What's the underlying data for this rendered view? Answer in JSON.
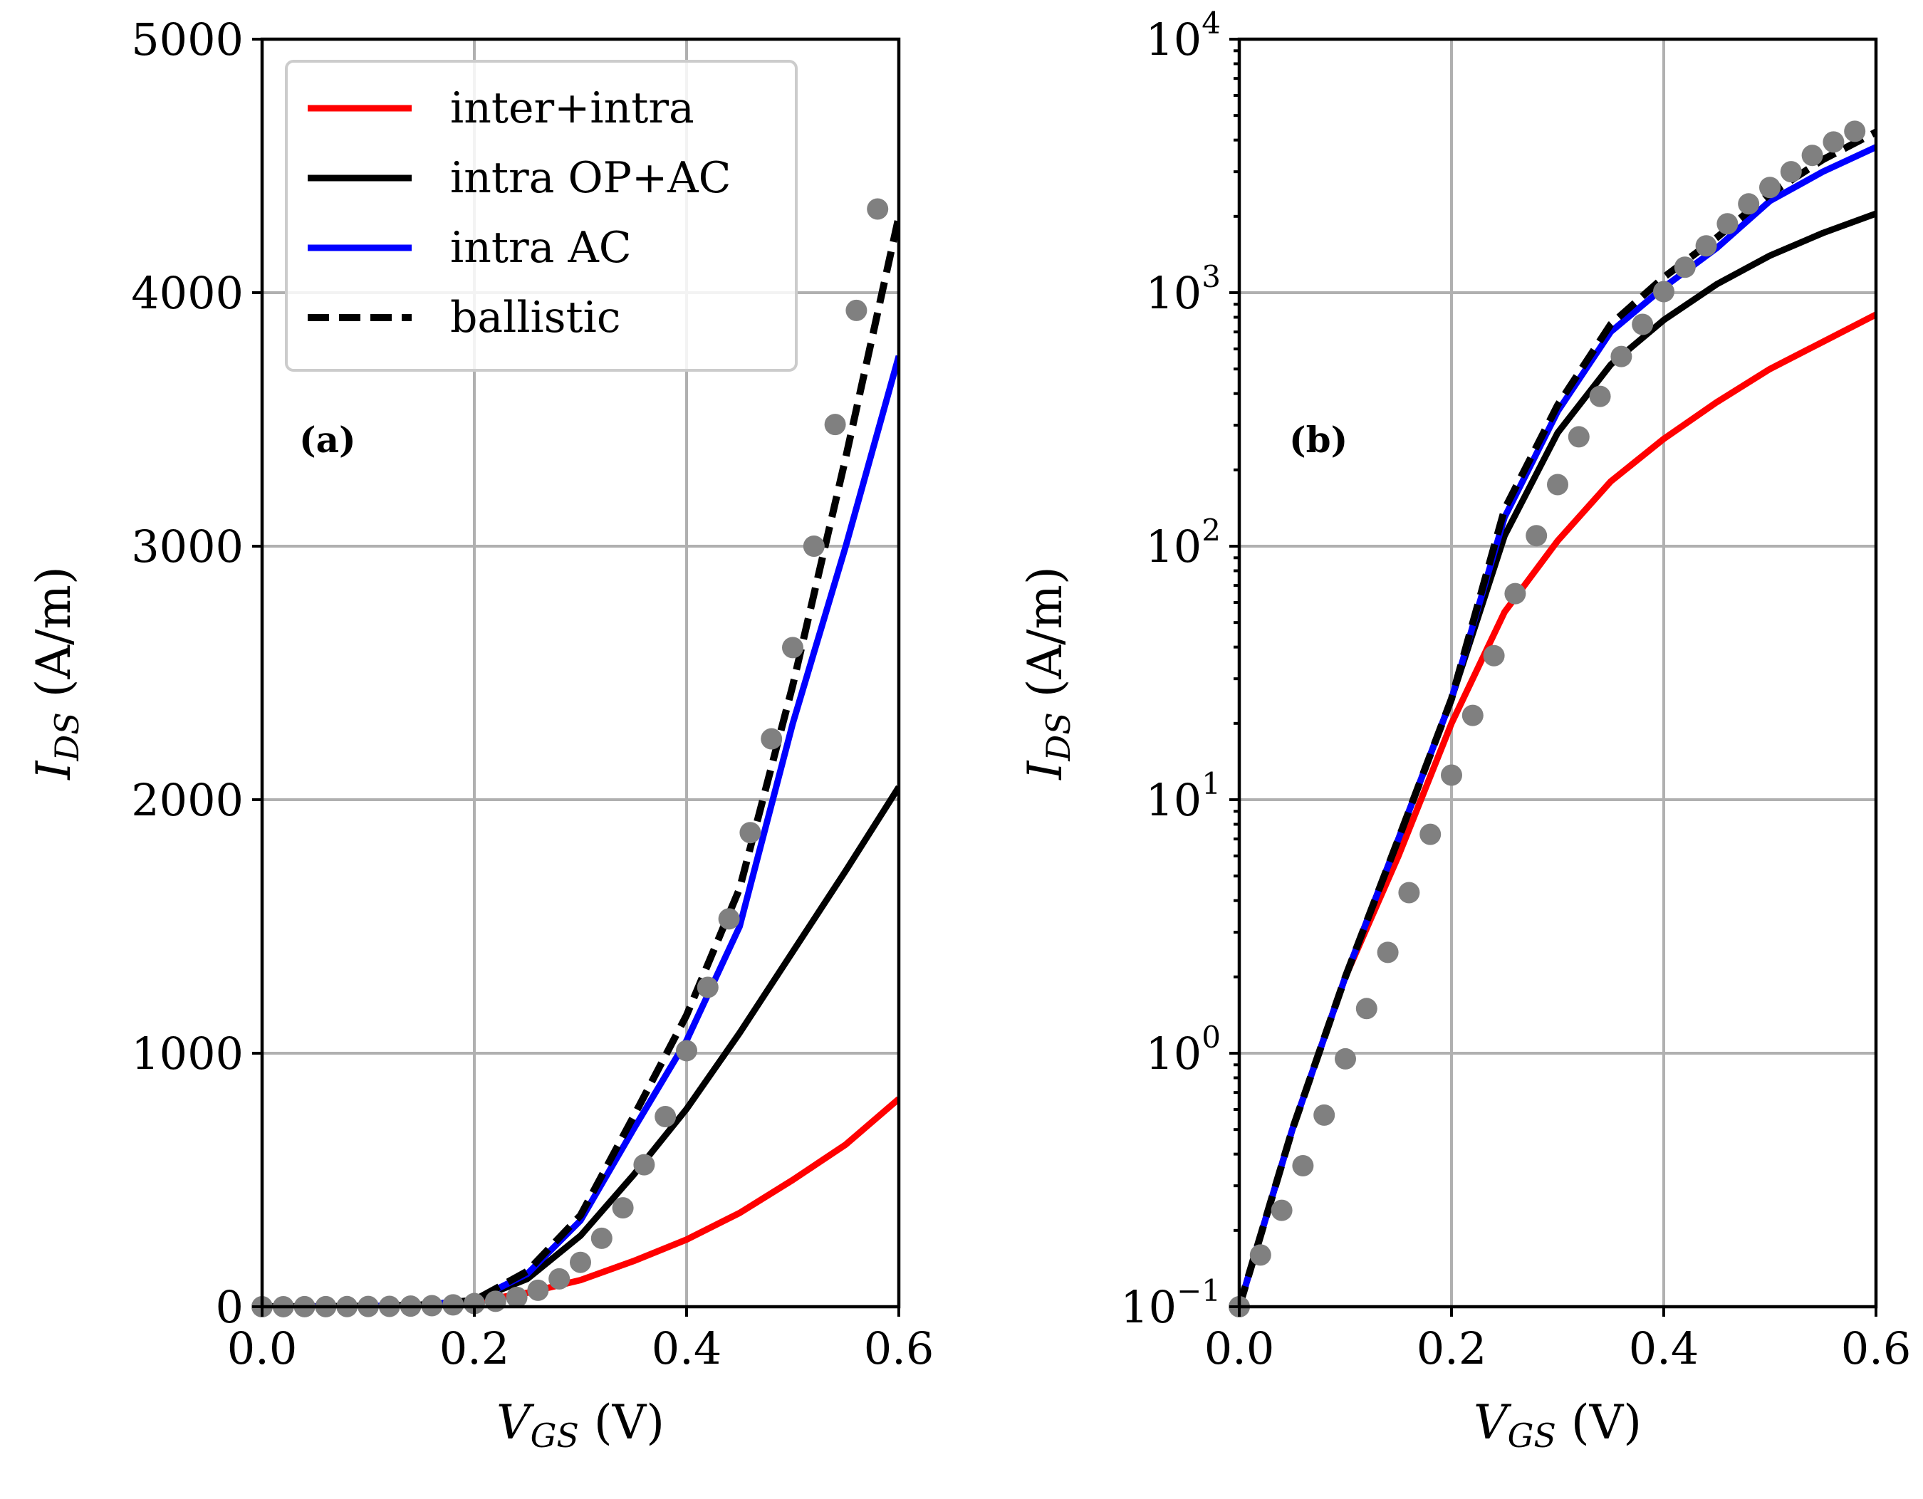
{
  "chart_data": [
    {
      "type": "line",
      "panel_label": "(a)",
      "yscale": "linear",
      "xlim": [
        0.0,
        0.6
      ],
      "ylim": [
        0,
        5000
      ],
      "xticks": [
        "0.0",
        "0.2",
        "0.4",
        "0.6"
      ],
      "yticks": [
        "0",
        "1000",
        "2000",
        "3000",
        "4000",
        "5000"
      ],
      "xlabel": {
        "main": "V",
        "sub": "GS",
        "unit": " (V)"
      },
      "ylabel": {
        "main": "I",
        "sub": "DS",
        "unit": " (A/m)"
      },
      "grid": true,
      "legend_position": "top-left",
      "series": [
        {
          "name": "inter+intra",
          "color": "#ff0000",
          "style": "solid",
          "x": [
            0.0,
            0.05,
            0.1,
            0.15,
            0.2,
            0.25,
            0.3,
            0.35,
            0.4,
            0.45,
            0.5,
            0.55,
            0.6
          ],
          "y": [
            0.1,
            0.5,
            2,
            6,
            20,
            55,
            105,
            180,
            265,
            370,
            500,
            640,
            820
          ]
        },
        {
          "name": "intra OP+AC",
          "color": "#000000",
          "style": "solid",
          "x": [
            0.0,
            0.05,
            0.1,
            0.15,
            0.2,
            0.25,
            0.3,
            0.35,
            0.4,
            0.45,
            0.5,
            0.55,
            0.6
          ],
          "y": [
            0.1,
            0.5,
            2,
            7,
            25,
            110,
            280,
            520,
            780,
            1080,
            1400,
            1720,
            2050
          ]
        },
        {
          "name": "intra AC",
          "color": "#0000ff",
          "style": "solid",
          "x": [
            0.0,
            0.05,
            0.1,
            0.15,
            0.2,
            0.25,
            0.3,
            0.35,
            0.4,
            0.45,
            0.5,
            0.55,
            0.6
          ],
          "y": [
            0.1,
            0.5,
            2,
            7,
            25,
            130,
            340,
            700,
            1050,
            1500,
            2300,
            3000,
            3750
          ]
        },
        {
          "name": "ballistic",
          "color": "#000000",
          "style": "dashed",
          "x": [
            0.0,
            0.05,
            0.1,
            0.15,
            0.2,
            0.25,
            0.3,
            0.35,
            0.4,
            0.45,
            0.5,
            0.55,
            0.6
          ],
          "y": [
            0.1,
            0.5,
            2,
            7,
            25,
            140,
            360,
            750,
            1150,
            1650,
            2450,
            3350,
            4300
          ]
        }
      ],
      "markers": {
        "color": "#808080",
        "x": [
          0.0,
          0.02,
          0.04,
          0.06,
          0.08,
          0.1,
          0.12,
          0.14,
          0.16,
          0.18,
          0.2,
          0.22,
          0.24,
          0.26,
          0.28,
          0.3,
          0.32,
          0.34,
          0.36,
          0.38,
          0.4,
          0.42,
          0.44,
          0.46,
          0.48,
          0.5,
          0.52,
          0.54,
          0.56,
          0.58
        ],
        "y": [
          0.1,
          0.16,
          0.24,
          0.36,
          0.57,
          0.95,
          1.5,
          2.5,
          4.3,
          7.3,
          12.5,
          21.5,
          37,
          65,
          110,
          175,
          270,
          390,
          560,
          750,
          1010,
          1260,
          1530,
          1870,
          2240,
          2600,
          3000,
          3480,
          3930,
          4330
        ]
      }
    },
    {
      "type": "line",
      "panel_label": "(b)",
      "yscale": "log",
      "xlim": [
        0.0,
        0.6
      ],
      "ylim": [
        0.1,
        10000
      ],
      "xticks": [
        "0.0",
        "0.2",
        "0.4",
        "0.6"
      ],
      "yticks": [
        {
          "base": "10",
          "exp": "−1"
        },
        {
          "base": "10",
          "exp": "0"
        },
        {
          "base": "10",
          "exp": "1"
        },
        {
          "base": "10",
          "exp": "2"
        },
        {
          "base": "10",
          "exp": "3"
        },
        {
          "base": "10",
          "exp": "4"
        }
      ],
      "xlabel": {
        "main": "V",
        "sub": "GS",
        "unit": " (V)"
      },
      "ylabel": {
        "main": "I",
        "sub": "DS",
        "unit": " (A/m)"
      },
      "grid": true,
      "series": [
        {
          "name": "inter+intra",
          "color": "#ff0000",
          "style": "solid",
          "x": [
            0.0,
            0.05,
            0.1,
            0.15,
            0.2,
            0.25,
            0.3,
            0.35,
            0.4,
            0.45,
            0.5,
            0.55,
            0.6
          ],
          "y": [
            0.1,
            0.5,
            2,
            6,
            20,
            55,
            105,
            180,
            265,
            370,
            500,
            640,
            820
          ]
        },
        {
          "name": "intra OP+AC",
          "color": "#000000",
          "style": "solid",
          "x": [
            0.0,
            0.05,
            0.1,
            0.15,
            0.2,
            0.25,
            0.3,
            0.35,
            0.4,
            0.45,
            0.5,
            0.55,
            0.6
          ],
          "y": [
            0.1,
            0.5,
            2,
            7,
            25,
            110,
            280,
            520,
            780,
            1080,
            1400,
            1720,
            2050
          ]
        },
        {
          "name": "intra AC",
          "color": "#0000ff",
          "style": "solid",
          "x": [
            0.0,
            0.05,
            0.1,
            0.15,
            0.2,
            0.25,
            0.3,
            0.35,
            0.4,
            0.45,
            0.5,
            0.55,
            0.6
          ],
          "y": [
            0.1,
            0.5,
            2,
            7,
            25,
            130,
            340,
            700,
            1050,
            1500,
            2300,
            3000,
            3750
          ]
        },
        {
          "name": "ballistic",
          "color": "#000000",
          "style": "dashed",
          "x": [
            0.0,
            0.05,
            0.1,
            0.15,
            0.2,
            0.25,
            0.3,
            0.35,
            0.4,
            0.45,
            0.5,
            0.55,
            0.6
          ],
          "y": [
            0.1,
            0.5,
            2,
            7,
            25,
            140,
            360,
            750,
            1150,
            1650,
            2450,
            3350,
            4300
          ]
        }
      ],
      "markers": {
        "color": "#808080",
        "x": [
          0.0,
          0.02,
          0.04,
          0.06,
          0.08,
          0.1,
          0.12,
          0.14,
          0.16,
          0.18,
          0.2,
          0.22,
          0.24,
          0.26,
          0.28,
          0.3,
          0.32,
          0.34,
          0.36,
          0.38,
          0.4,
          0.42,
          0.44,
          0.46,
          0.48,
          0.5,
          0.52,
          0.54,
          0.56,
          0.58
        ],
        "y": [
          0.1,
          0.16,
          0.24,
          0.36,
          0.57,
          0.95,
          1.5,
          2.5,
          4.3,
          7.3,
          12.5,
          21.5,
          37,
          65,
          110,
          175,
          270,
          390,
          560,
          750,
          1010,
          1260,
          1530,
          1870,
          2240,
          2600,
          3000,
          3480,
          3930,
          4330
        ]
      }
    }
  ]
}
